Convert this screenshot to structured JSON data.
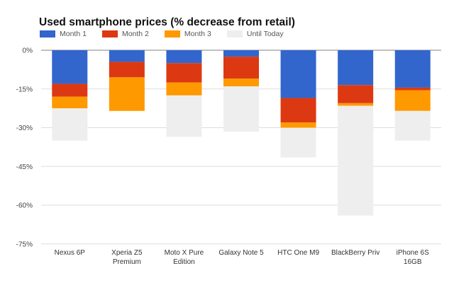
{
  "chart_data": {
    "type": "bar",
    "stacked": true,
    "title": "Used smartphone prices (% decrease from retail)",
    "xlabel": "",
    "ylabel": "",
    "ylim": [
      -75,
      0
    ],
    "yticks": [
      "0%",
      "-15%",
      "-30%",
      "-45%",
      "-60%",
      "-75%"
    ],
    "ytick_values": [
      0,
      -15,
      -30,
      -45,
      -60,
      -75
    ],
    "grid": true,
    "legend_position": "top-left",
    "categories": [
      [
        "Nexus 6P"
      ],
      [
        "Xperia Z5",
        "Premium"
      ],
      [
        "Moto X Pure",
        "Edition"
      ],
      [
        "Galaxy Note 5"
      ],
      [
        "HTC One M9"
      ],
      [
        "BlackBerry Priv"
      ],
      [
        "iPhone 6S",
        "16GB"
      ]
    ],
    "series": [
      {
        "name": "Month 1",
        "color": "#3366cc",
        "values": [
          -13,
          -4.5,
          -5,
          -2.5,
          -18.5,
          -13.5,
          -14.5
        ]
      },
      {
        "name": "Month 2",
        "color": "#dc3912",
        "values": [
          -5,
          -6,
          -7.5,
          -8.5,
          -9.5,
          -7,
          -1
        ]
      },
      {
        "name": "Month 3",
        "color": "#ff9900",
        "values": [
          -4.5,
          -13,
          -5,
          -3,
          -2,
          -1,
          -8
        ]
      },
      {
        "name": "Until Today",
        "color": "#eeeeee",
        "values": [
          -12.5,
          0,
          -16,
          -17.5,
          -11.5,
          -42.5,
          -11.5
        ]
      }
    ]
  }
}
